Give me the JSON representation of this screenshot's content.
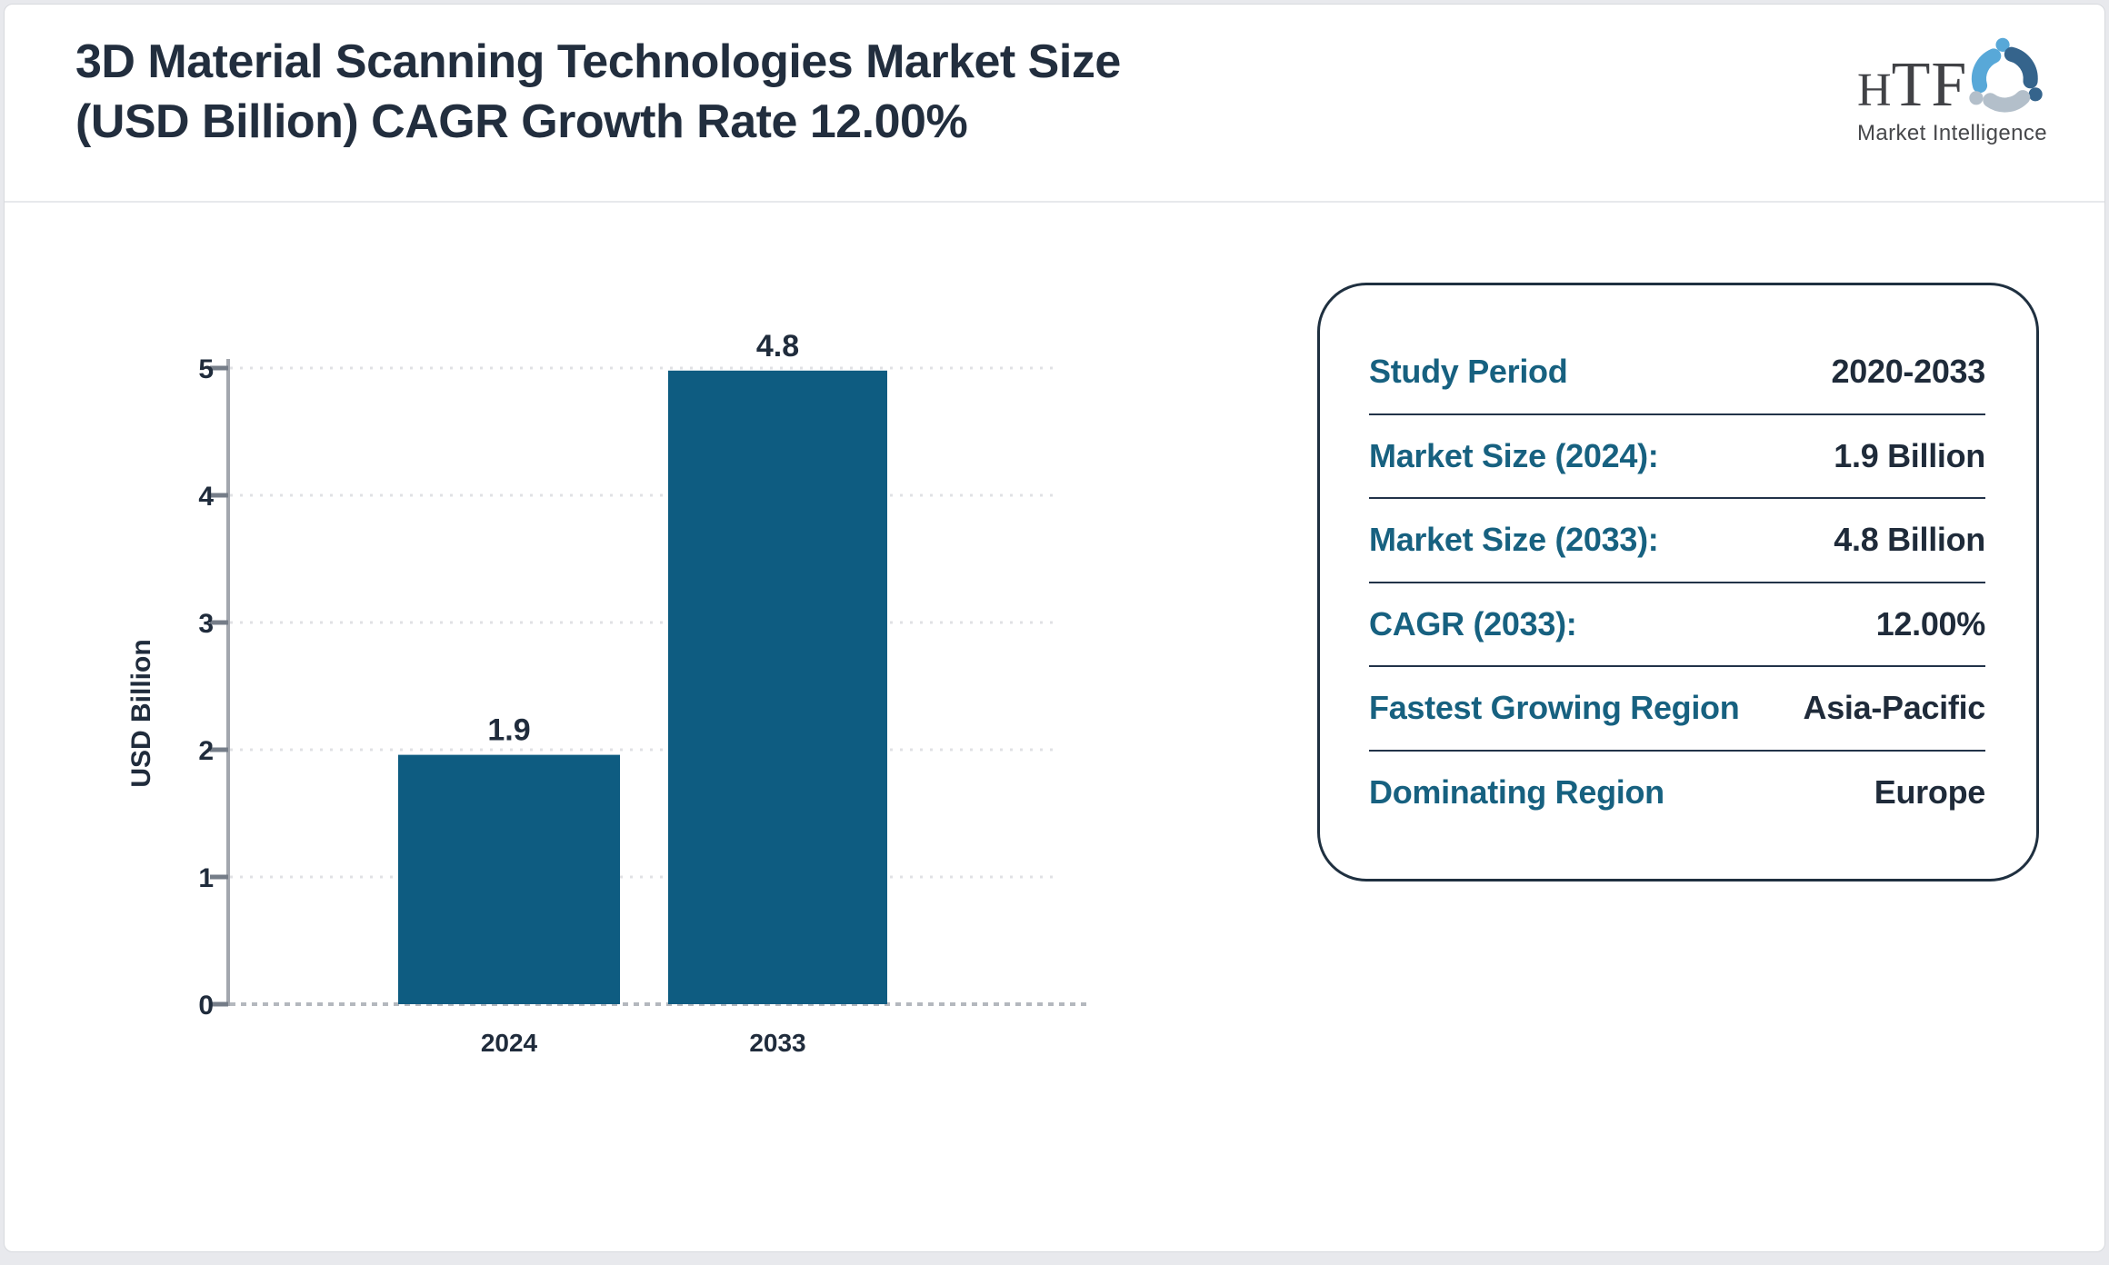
{
  "header": {
    "title_line1": "3D Material Scanning Technologies Market Size",
    "title_line2": "(USD Billion) CAGR Growth Rate 12.00%"
  },
  "logo": {
    "brand_h": "H",
    "brand_tf": "TF",
    "tagline": "Market Intelligence",
    "swirl_colors": [
      "#58a8d8",
      "#35648c",
      "#b3bfca"
    ]
  },
  "chart_data": {
    "type": "bar",
    "title": "3D Material Scanning Technologies Market Size (USD Billion) CAGR Growth Rate 12.00%",
    "categories": [
      "2024",
      "2033"
    ],
    "values": [
      1.9,
      4.8
    ],
    "bar_drawn_values": [
      1.96,
      4.98
    ],
    "ylabel": "USD Billion",
    "xlabel": "",
    "ylim": [
      0,
      5
    ],
    "yticks": [
      0,
      1,
      2,
      3,
      4,
      5
    ],
    "grid": "horizontal-dotted",
    "legend": "none",
    "bar_color": "#0e5c81",
    "text_color": "#202c3c",
    "axis_color": "#a3a7ae",
    "tick_color": "#757d88",
    "grid_color": "#e0e1e4",
    "baseline_color": "#b4b8be"
  },
  "info_panel": {
    "rows": [
      {
        "label": "Study Period",
        "value": "2020-2033"
      },
      {
        "label": "Market Size (2024):",
        "value": "1.9 Billion"
      },
      {
        "label": "Market Size (2033):",
        "value": "4.8 Billion"
      },
      {
        "label": "CAGR (2033):",
        "value": "12.00%"
      },
      {
        "label": "Fastest Growing Region",
        "value": "Asia-Pacific"
      },
      {
        "label": "Dominating Region",
        "value": "Europe"
      }
    ],
    "label_color": "#176180",
    "value_color": "#1f2b3a",
    "border_color": "#1f3040"
  }
}
